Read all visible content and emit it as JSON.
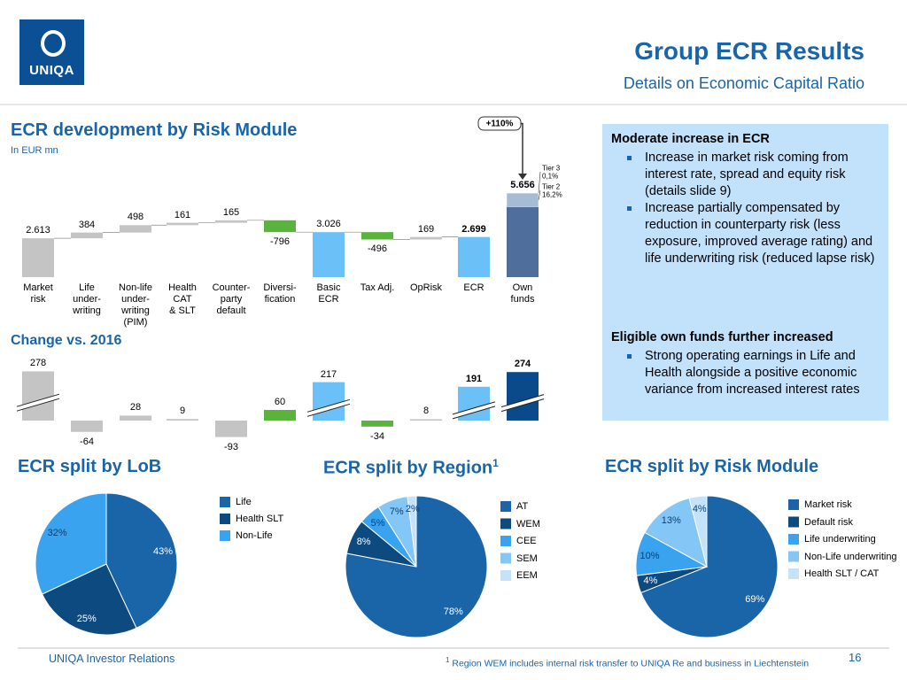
{
  "header": {
    "logo": "UNIQA",
    "title": "Group ECR Results",
    "subtitle": "Details on Economic Capital Ratio"
  },
  "panel": {
    "sections": [
      {
        "heading": "Moderate increase in ECR",
        "bullets": [
          "Increase in market risk coming from interest rate, spread and equity risk (details slide 9)",
          "Increase partially compensated by reduction in counterparty risk (less exposure, improved average rating) and life underwriting risk (reduced lapse risk)"
        ]
      },
      {
        "heading": "Eligible own funds further increased",
        "bullets": [
          "Strong operating earnings in Life and Health alongside a positive economic variance from increased interest rates"
        ]
      }
    ]
  },
  "footer": {
    "source": "UNIQA Investor Relations",
    "footnote_mark": "1",
    "footnote": "Region WEM includes internal risk transfer to UNIQA Re and business in Liechtenstein",
    "page": "16"
  },
  "chart_data": [
    {
      "type": "waterfall",
      "title": "ECR development  by Risk Module",
      "subtitle": "In EUR mn",
      "categories": [
        "Market\nrisk",
        "Life\nunder-\nwriting",
        "Non-life\nunder-\nwriting\n(PIM)",
        "Health\nCAT\n& SLT",
        "Counter-\nparty\ndefault",
        "Diversi-\nfication",
        "Basic\nECR",
        "Tax Adj.",
        "OpRisk",
        "ECR",
        "Own\nfunds"
      ],
      "values": [
        2613,
        384,
        498,
        161,
        165,
        -796,
        3026,
        -496,
        169,
        2699,
        5656
      ],
      "value_labels": [
        "2.613",
        "384",
        "498",
        "161",
        "165",
        "-796",
        "3.026",
        "-496",
        "169",
        "2.699",
        "5.656"
      ],
      "measure": [
        "absolute",
        "relative",
        "relative",
        "relative",
        "relative",
        "relative",
        "total",
        "relative",
        "relative",
        "total",
        "absolute"
      ],
      "colors": [
        "#c4c4c4",
        "#c4c4c4",
        "#c4c4c4",
        "#c4c4c4",
        "#c4c4c4",
        "#5ab33c",
        "#6cc0f8",
        "#5ab33c",
        "#c4c4c4",
        "#6cc0f8",
        "#4f6e9c"
      ],
      "annotation": "+110%",
      "segments": [
        {
          "name": "Tier 3",
          "share": 0.1,
          "share_label": "0,1%",
          "color": "#a7bbd5"
        },
        {
          "name": "Tier 2",
          "share": 16.2,
          "share_label": "16,2%",
          "color": "#a7bbd5"
        }
      ]
    },
    {
      "type": "bar",
      "title": "Change vs. 2016",
      "values": [
        278,
        -64,
        28,
        9,
        -93,
        60,
        217,
        -34,
        8,
        191,
        274
      ],
      "colors": [
        "#c4c4c4",
        "#c4c4c4",
        "#c4c4c4",
        "#c4c4c4",
        "#c4c4c4",
        "#5ab33c",
        "#6cc0f8",
        "#5ab33c",
        "#c4c4c4",
        "#6cc0f8",
        "#0b4a8a"
      ],
      "broken": [
        true,
        false,
        false,
        false,
        false,
        false,
        true,
        false,
        false,
        true,
        true
      ]
    },
    {
      "type": "pie",
      "title": "ECR split by LoB",
      "categories": [
        "Life",
        "Health SLT",
        "Non-Life"
      ],
      "values": [
        43,
        25,
        32
      ],
      "value_labels": [
        "43%",
        "25%",
        "32%"
      ],
      "colors": [
        "#1a64a8",
        "#0d4a80",
        "#39a3f0"
      ]
    },
    {
      "type": "pie",
      "title": "ECR split by Region",
      "title_note": "1",
      "categories": [
        "AT",
        "WEM",
        "CEE",
        "SEM",
        "EEM"
      ],
      "values": [
        78,
        8,
        5,
        7,
        2
      ],
      "value_labels": [
        "78%",
        "8%",
        "5%",
        "7%",
        "2%"
      ],
      "colors": [
        "#1a64a8",
        "#0d4a80",
        "#39a3f0",
        "#84c6f6",
        "#c4e3fa"
      ]
    },
    {
      "type": "pie",
      "title": "ECR split by Risk Module",
      "categories": [
        "Market risk",
        "Default risk",
        "Life underwriting",
        "Non-Life underwriting",
        "Health SLT / CAT"
      ],
      "values": [
        69,
        4,
        10,
        13,
        4
      ],
      "value_labels": [
        "69%",
        "4%",
        "10%",
        "13%",
        "4%"
      ],
      "colors": [
        "#1a64a8",
        "#0d4a80",
        "#39a3f0",
        "#84c6f6",
        "#c4e3fa"
      ]
    }
  ]
}
